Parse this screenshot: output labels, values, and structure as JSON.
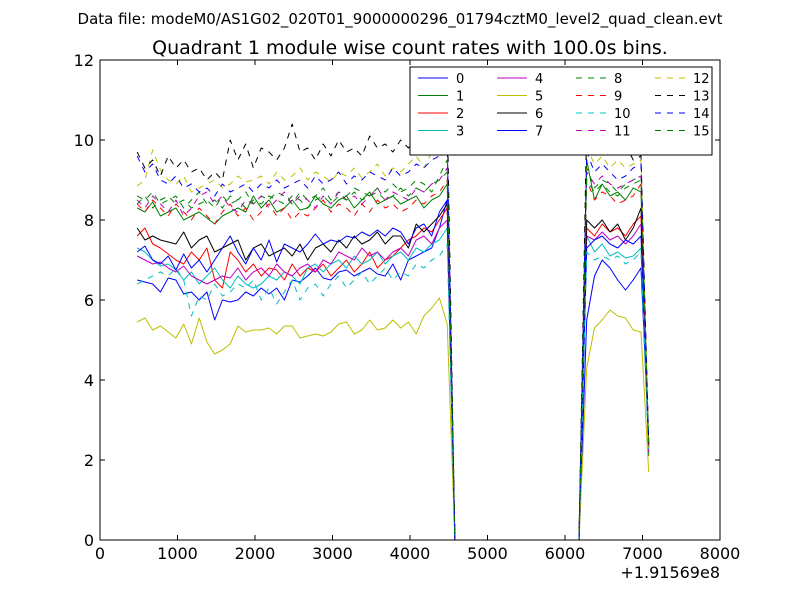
{
  "figure": {
    "suptitle": "Data file: modeM0/AS1G02_020T01_9000000296_01794cztM0_level2_quad_clean.evt"
  },
  "chart_data": {
    "type": "line",
    "title": "Quadrant 1 module wise count rates with 100.0s bins.",
    "xlabel": "",
    "ylabel": "",
    "xlim": [
      0,
      8000
    ],
    "ylim": [
      0,
      12
    ],
    "x_offset_label": "+1.91569e8",
    "x_ticks": [
      "0",
      "1000",
      "2000",
      "3000",
      "4000",
      "5000",
      "6000",
      "7000",
      "8000"
    ],
    "y_ticks": [
      "0",
      "2",
      "4",
      "6",
      "8",
      "10",
      "12"
    ],
    "grid": false,
    "legend": {
      "position": "top-right",
      "columns": 4
    },
    "x": [
      480,
      580,
      680,
      780,
      880,
      980,
      1080,
      1180,
      1280,
      1380,
      1480,
      1580,
      1680,
      1780,
      1880,
      1980,
      2080,
      2180,
      2280,
      2380,
      2480,
      2580,
      2680,
      2780,
      2880,
      2980,
      3080,
      3180,
      3280,
      3380,
      3480,
      3580,
      3680,
      3780,
      3880,
      3980,
      4080,
      4180,
      4280,
      4380,
      4480,
      4580,
      4680,
      4780,
      4880,
      4980,
      5080,
      5180,
      5280,
      5380,
      5480,
      5580,
      5680,
      5780,
      5880,
      5980,
      6080,
      6180,
      6280,
      6380,
      6480,
      6580,
      6680,
      6780,
      6880,
      6980,
      7080
    ],
    "series": [
      {
        "name": "0",
        "color": "#0000ff",
        "dash": "solid",
        "values": [
          6.5,
          6.45,
          6.4,
          6.2,
          6.55,
          6.5,
          6.15,
          6.2,
          6.0,
          6.2,
          5.5,
          6.0,
          5.95,
          6.0,
          6.2,
          6.1,
          6.3,
          6.15,
          6.3,
          6.0,
          6.5,
          6.45,
          6.6,
          6.8,
          6.55,
          6.5,
          6.7,
          6.75,
          6.6,
          6.7,
          6.8,
          6.65,
          6.6,
          6.9,
          6.5,
          7.0,
          7.1,
          7.2,
          7.3,
          7.8,
          8.5,
          0,
          0,
          0,
          0,
          0,
          0,
          0,
          0,
          0,
          0,
          0,
          0,
          0,
          0,
          0,
          0,
          0,
          5.5,
          6.6,
          7.0,
          6.8,
          6.5,
          6.25,
          6.5,
          6.8,
          2.5
        ]
      },
      {
        "name": "1",
        "color": "#008000",
        "dash": "solid",
        "values": [
          8.3,
          8.2,
          8.45,
          8.1,
          8.2,
          8.3,
          8.0,
          8.1,
          8.2,
          8.05,
          7.9,
          8.1,
          8.2,
          8.3,
          8.2,
          8.6,
          8.3,
          8.5,
          8.2,
          8.3,
          8.5,
          8.25,
          8.3,
          8.6,
          8.4,
          8.3,
          8.5,
          8.6,
          8.3,
          8.5,
          8.7,
          8.4,
          8.5,
          8.6,
          8.4,
          8.5,
          8.6,
          8.3,
          8.5,
          8.6,
          8.9,
          0,
          0,
          0,
          0,
          0,
          0,
          0,
          0,
          0,
          0,
          0,
          0,
          0,
          0,
          0,
          0,
          0,
          9.5,
          8.5,
          8.9,
          8.6,
          8.7,
          8.5,
          8.8,
          8.7,
          2.1
        ]
      },
      {
        "name": "2",
        "color": "#ff0000",
        "dash": "solid",
        "values": [
          7.6,
          7.8,
          7.4,
          7.3,
          7.15,
          7.0,
          6.9,
          7.2,
          7.0,
          7.3,
          6.5,
          6.3,
          7.2,
          7.0,
          6.7,
          6.9,
          6.6,
          6.8,
          6.75,
          6.5,
          6.9,
          6.6,
          6.8,
          6.7,
          6.9,
          6.6,
          6.8,
          7.0,
          6.7,
          6.9,
          7.2,
          6.8,
          7.0,
          7.1,
          7.3,
          7.5,
          7.6,
          7.8,
          7.7,
          8.0,
          8.3,
          0,
          0,
          0,
          0,
          0,
          0,
          0,
          0,
          0,
          0,
          0,
          0,
          0,
          0,
          0,
          0,
          0,
          7.8,
          7.6,
          7.9,
          7.7,
          7.8,
          7.6,
          7.9,
          8.1,
          2.3
        ]
      },
      {
        "name": "3",
        "color": "#00bfbf",
        "dash": "solid",
        "values": [
          7.3,
          7.2,
          7.0,
          6.85,
          6.9,
          6.75,
          6.5,
          6.7,
          6.4,
          6.6,
          6.8,
          6.5,
          6.3,
          6.6,
          6.4,
          6.3,
          6.4,
          6.6,
          6.5,
          6.7,
          6.6,
          6.4,
          6.8,
          6.9,
          6.7,
          6.9,
          7.0,
          6.8,
          7.1,
          6.9,
          7.0,
          7.2,
          6.9,
          7.1,
          7.2,
          7.0,
          7.3,
          7.2,
          7.4,
          7.5,
          7.8,
          0,
          0,
          0,
          0,
          0,
          0,
          0,
          0,
          0,
          0,
          0,
          0,
          0,
          0,
          0,
          0,
          0,
          7.6,
          7.2,
          7.4,
          7.1,
          7.2,
          7.05,
          7.1,
          7.3,
          2.2
        ]
      },
      {
        "name": "4",
        "color": "#bf00bf",
        "dash": "solid",
        "values": [
          7.1,
          7.0,
          6.9,
          6.95,
          6.8,
          6.7,
          6.85,
          6.6,
          6.5,
          6.4,
          6.5,
          6.6,
          6.55,
          6.8,
          6.5,
          6.7,
          6.8,
          6.6,
          6.9,
          6.7,
          6.6,
          6.8,
          6.9,
          6.7,
          7.0,
          6.9,
          7.2,
          7.1,
          7.0,
          7.3,
          7.1,
          7.2,
          7.0,
          7.2,
          7.3,
          7.1,
          7.5,
          7.6,
          7.4,
          7.8,
          8.0,
          0,
          0,
          0,
          0,
          0,
          0,
          0,
          0,
          0,
          0,
          0,
          0,
          0,
          0,
          0,
          0,
          0,
          7.6,
          7.5,
          7.7,
          7.5,
          7.6,
          7.4,
          7.6,
          7.9,
          2.3
        ]
      },
      {
        "name": "5",
        "color": "#bfbf00",
        "dash": "solid",
        "values": [
          5.45,
          5.55,
          5.25,
          5.35,
          5.2,
          5.05,
          5.4,
          4.9,
          5.55,
          4.95,
          4.65,
          4.75,
          4.9,
          5.35,
          5.2,
          5.25,
          5.25,
          5.3,
          5.15,
          5.35,
          5.35,
          5.05,
          5.1,
          5.15,
          5.1,
          5.2,
          5.4,
          5.45,
          5.15,
          5.25,
          5.5,
          5.25,
          5.3,
          5.5,
          5.3,
          5.45,
          5.15,
          5.6,
          5.8,
          6.05,
          5.4,
          0,
          0,
          0,
          0,
          0,
          0,
          0,
          0,
          0,
          0,
          0,
          0,
          0,
          0,
          0,
          0,
          0,
          4.3,
          5.3,
          5.5,
          5.75,
          5.6,
          5.55,
          5.25,
          5.2,
          1.7
        ]
      },
      {
        "name": "6",
        "color": "#000000",
        "dash": "solid",
        "values": [
          7.8,
          7.5,
          7.6,
          7.5,
          7.45,
          7.4,
          7.7,
          7.3,
          7.5,
          7.6,
          7.2,
          7.3,
          7.4,
          7.5,
          7.0,
          7.3,
          7.4,
          7.1,
          7.2,
          7.3,
          7.1,
          7.4,
          7.0,
          7.3,
          7.4,
          7.2,
          7.5,
          7.3,
          7.6,
          7.4,
          7.5,
          7.7,
          7.4,
          7.6,
          7.6,
          7.3,
          7.9,
          7.7,
          7.9,
          8.1,
          8.4,
          0,
          0,
          0,
          0,
          0,
          0,
          0,
          0,
          0,
          0,
          0,
          0,
          0,
          0,
          0,
          0,
          0,
          8.0,
          7.8,
          8.0,
          7.7,
          7.9,
          7.5,
          7.8,
          8.3,
          2.4
        ]
      },
      {
        "name": "7",
        "color": "#0000ff",
        "dash": "solid",
        "values": [
          7.2,
          7.35,
          7.0,
          6.9,
          7.1,
          6.75,
          7.15,
          6.8,
          7.0,
          6.7,
          7.0,
          7.3,
          7.6,
          7.2,
          6.9,
          7.3,
          7.0,
          7.5,
          6.95,
          7.4,
          7.3,
          7.2,
          7.4,
          7.65,
          7.4,
          7.5,
          7.45,
          7.6,
          7.55,
          7.7,
          7.6,
          7.75,
          7.6,
          7.8,
          7.7,
          7.4,
          7.8,
          7.9,
          7.6,
          8.2,
          8.5,
          0,
          0,
          0,
          0,
          0,
          0,
          0,
          0,
          0,
          0,
          0,
          0,
          0,
          0,
          0,
          0,
          0,
          7.3,
          7.5,
          7.6,
          7.4,
          7.3,
          7.5,
          7.4,
          7.6,
          2.3
        ]
      },
      {
        "name": "8",
        "color": "#008000",
        "dash": "dashed",
        "values": [
          8.6,
          8.5,
          8.7,
          8.4,
          8.5,
          8.6,
          8.3,
          8.5,
          8.7,
          8.4,
          8.5,
          8.3,
          8.6,
          8.5,
          8.7,
          8.4,
          8.6,
          8.5,
          8.7,
          8.6,
          8.4,
          8.7,
          8.5,
          8.6,
          8.8,
          8.5,
          8.7,
          8.6,
          8.8,
          8.7,
          8.6,
          8.8,
          8.7,
          8.9,
          8.7,
          8.8,
          9.0,
          8.9,
          8.7,
          9.1,
          9.5,
          0,
          0,
          0,
          0,
          0,
          0,
          0,
          0,
          0,
          0,
          0,
          0,
          0,
          0,
          0,
          0,
          0,
          9.3,
          8.8,
          9.0,
          8.9,
          8.7,
          8.9,
          9.0,
          9.1,
          2.2
        ]
      },
      {
        "name": "9",
        "color": "#ff0000",
        "dash": "dashed",
        "values": [
          8.4,
          8.2,
          8.5,
          8.3,
          8.1,
          8.4,
          8.2,
          8.0,
          8.3,
          8.1,
          7.9,
          8.2,
          8.4,
          8.1,
          8.3,
          8.0,
          8.2,
          8.4,
          8.1,
          8.3,
          8.0,
          8.2,
          8.1,
          8.3,
          8.5,
          8.2,
          8.4,
          8.3,
          8.1,
          8.4,
          8.2,
          8.5,
          8.3,
          8.4,
          8.2,
          8.3,
          8.5,
          8.4,
          8.6,
          8.7,
          9.0,
          0,
          0,
          0,
          0,
          0,
          0,
          0,
          0,
          0,
          0,
          0,
          0,
          0,
          0,
          0,
          0,
          0,
          9.0,
          8.5,
          8.7,
          8.6,
          8.4,
          8.5,
          8.6,
          8.9,
          2.2
        ]
      },
      {
        "name": "10",
        "color": "#00bfbf",
        "dash": "dashed",
        "values": [
          6.4,
          6.5,
          6.6,
          6.7,
          6.6,
          6.8,
          6.5,
          5.6,
          6.1,
          6.0,
          6.4,
          6.1,
          6.2,
          6.4,
          6.3,
          6.5,
          6.0,
          6.3,
          5.9,
          6.2,
          6.5,
          6.0,
          6.3,
          6.4,
          6.1,
          6.4,
          6.6,
          6.3,
          6.5,
          6.7,
          6.4,
          6.6,
          6.8,
          6.5,
          6.7,
          6.6,
          6.9,
          6.8,
          7.0,
          7.1,
          7.4,
          0,
          0,
          0,
          0,
          0,
          0,
          0,
          0,
          0,
          0,
          0,
          0,
          0,
          0,
          0,
          0,
          0,
          7.2,
          7.0,
          7.1,
          7.0,
          7.1,
          6.9,
          7.0,
          7.2,
          2.1
        ]
      },
      {
        "name": "11",
        "color": "#bf00bf",
        "dash": "dashed",
        "values": [
          8.5,
          8.3,
          8.6,
          8.4,
          8.2,
          8.5,
          8.1,
          8.3,
          8.6,
          8.7,
          8.4,
          8.6,
          8.3,
          8.2,
          8.5,
          8.4,
          8.6,
          8.3,
          8.5,
          8.7,
          8.4,
          8.6,
          8.5,
          8.3,
          8.6,
          8.4,
          8.7,
          8.5,
          8.6,
          8.4,
          8.6,
          8.8,
          8.5,
          8.7,
          8.6,
          8.5,
          8.8,
          8.7,
          8.9,
          9.0,
          9.3,
          0,
          0,
          0,
          0,
          0,
          0,
          0,
          0,
          0,
          0,
          0,
          0,
          0,
          0,
          0,
          0,
          0,
          9.2,
          8.9,
          9.1,
          8.9,
          8.8,
          8.9,
          9.0,
          9.1,
          2.2
        ]
      },
      {
        "name": "12",
        "color": "#bfbf00",
        "dash": "dashed",
        "values": [
          8.85,
          9.0,
          9.75,
          9.25,
          9.0,
          8.9,
          9.1,
          8.7,
          8.8,
          8.9,
          9.0,
          8.8,
          8.9,
          9.1,
          8.95,
          9.0,
          9.1,
          8.9,
          9.2,
          9.0,
          9.1,
          9.3,
          9.0,
          9.2,
          9.1,
          8.95,
          9.2,
          9.1,
          9.3,
          9.05,
          9.2,
          9.4,
          9.1,
          9.3,
          9.2,
          9.4,
          9.6,
          9.3,
          9.7,
          9.8,
          10.1,
          0,
          0,
          0,
          0,
          0,
          0,
          0,
          0,
          0,
          0,
          0,
          0,
          0,
          0,
          0,
          0,
          0,
          9.8,
          9.4,
          9.6,
          9.3,
          9.5,
          9.3,
          9.4,
          9.5,
          2.3
        ]
      },
      {
        "name": "13",
        "color": "#000000",
        "dash": "dashed",
        "values": [
          9.7,
          9.3,
          9.5,
          9.1,
          9.6,
          9.3,
          9.5,
          9.2,
          9.3,
          9.0,
          9.2,
          9.0,
          10.0,
          9.5,
          9.9,
          9.3,
          9.8,
          9.7,
          9.5,
          9.8,
          10.4,
          9.7,
          9.8,
          9.5,
          9.9,
          9.6,
          10.0,
          9.7,
          9.8,
          9.6,
          10.1,
          9.8,
          9.9,
          9.7,
          10.0,
          9.8,
          10.0,
          10.2,
          10.4,
          10.6,
          10.8,
          0,
          0,
          0,
          0,
          0,
          0,
          0,
          0,
          0,
          0,
          0,
          0,
          0,
          0,
          0,
          0,
          0,
          10.5,
          10.0,
          10.7,
          10.2,
          10.0,
          9.9,
          9.5,
          9.6,
          2.4
        ]
      },
      {
        "name": "14",
        "color": "#0000ff",
        "dash": "dashed",
        "values": [
          9.6,
          9.2,
          9.4,
          9.0,
          8.9,
          9.1,
          8.8,
          8.9,
          8.7,
          8.8,
          8.6,
          8.9,
          8.7,
          8.8,
          8.9,
          8.7,
          8.9,
          8.8,
          9.0,
          8.8,
          8.9,
          9.0,
          8.8,
          9.1,
          8.9,
          9.0,
          9.2,
          8.9,
          9.1,
          9.0,
          9.2,
          9.1,
          9.0,
          9.3,
          9.1,
          9.2,
          9.4,
          9.3,
          9.5,
          9.6,
          10.0,
          0,
          0,
          0,
          0,
          0,
          0,
          0,
          0,
          0,
          0,
          0,
          0,
          0,
          0,
          0,
          0,
          0,
          9.7,
          9.2,
          9.4,
          9.2,
          9.0,
          9.1,
          9.3,
          9.4,
          2.4
        ]
      },
      {
        "name": "15",
        "color": "#008000",
        "dash": "dashed",
        "values": [
          8.4,
          8.6,
          8.3,
          8.5,
          8.6,
          8.4,
          8.5,
          8.3,
          8.4,
          8.5,
          8.3,
          8.6,
          8.4,
          8.5,
          8.3,
          8.5,
          8.4,
          8.6,
          8.5,
          8.4,
          8.6,
          8.5,
          8.3,
          8.5,
          8.6,
          8.4,
          8.6,
          8.5,
          8.7,
          8.5,
          8.6,
          8.7,
          8.5,
          8.6,
          8.8,
          8.6,
          8.8,
          8.7,
          8.9,
          9.0,
          9.2,
          0,
          0,
          0,
          0,
          0,
          0,
          0,
          0,
          0,
          0,
          0,
          0,
          0,
          0,
          0,
          0,
          0,
          9.0,
          8.7,
          8.9,
          8.7,
          8.6,
          8.8,
          8.9,
          9.0,
          2.3
        ]
      }
    ]
  }
}
